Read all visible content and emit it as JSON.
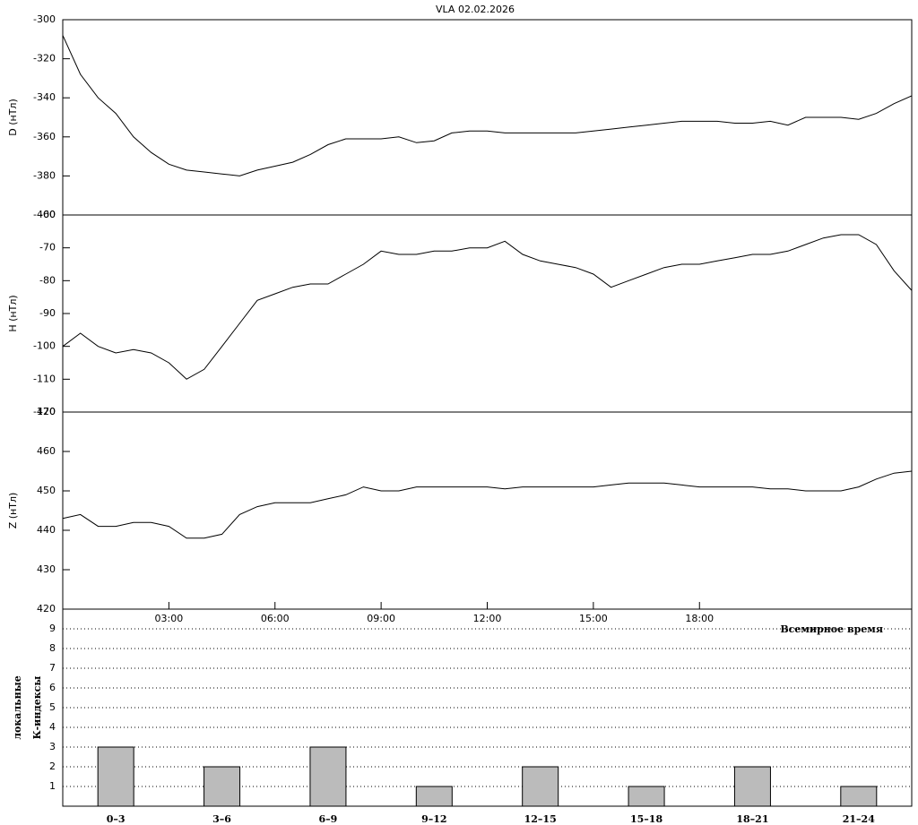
{
  "title": "VLA   02.02.2026",
  "chart_data": [
    {
      "type": "line",
      "y_label": "D (нТл)",
      "color": "#000000",
      "x": [
        0,
        0.5,
        1,
        1.5,
        2,
        2.5,
        3,
        3.5,
        4,
        4.5,
        5,
        5.5,
        6,
        6.5,
        7,
        7.5,
        8,
        8.5,
        9,
        9.5,
        10,
        10.5,
        11,
        11.5,
        12,
        12.5,
        13,
        13.5,
        14,
        14.5,
        15,
        15.5,
        16,
        16.5,
        17,
        17.5,
        18,
        18.5,
        19,
        19.5,
        20,
        20.5,
        21,
        21.5,
        22,
        22.5,
        23,
        23.5,
        24
      ],
      "values": [
        -308,
        -328,
        -340,
        -348,
        -360,
        -368,
        -374,
        -377,
        -378,
        -379,
        -380,
        -377,
        -375,
        -373,
        -369,
        -364,
        -361,
        -361,
        -361,
        -360,
        -363,
        -362,
        -358,
        -357,
        -357,
        -358,
        -358,
        -358,
        -358,
        -358,
        -357,
        -356,
        -355,
        -354,
        -353,
        -352,
        -352,
        -352,
        -353,
        -353,
        -352,
        -354,
        -350,
        -350,
        -350,
        -351,
        -348,
        -343,
        -339
      ],
      "xlim": [
        0,
        24
      ],
      "ylim": [
        -400,
        -300
      ],
      "yticks": [
        -400,
        -380,
        -360,
        -340,
        -320,
        -300
      ]
    },
    {
      "type": "line",
      "y_label": "H (нТл)",
      "color": "#000000",
      "x": [
        0,
        0.5,
        1,
        1.5,
        2,
        2.5,
        3,
        3.5,
        4,
        4.5,
        5,
        5.5,
        6,
        6.5,
        7,
        7.5,
        8,
        8.5,
        9,
        9.5,
        10,
        10.5,
        11,
        11.5,
        12,
        12.5,
        13,
        13.5,
        14,
        14.5,
        15,
        15.5,
        16,
        16.5,
        17,
        17.5,
        18,
        18.5,
        19,
        19.5,
        20,
        20.5,
        21,
        21.5,
        22,
        22.5,
        23,
        23.5,
        24
      ],
      "values": [
        -100,
        -96,
        -100,
        -102,
        -101,
        -102,
        -105,
        -110,
        -107,
        -100,
        -93,
        -86,
        -84,
        -82,
        -81,
        -81,
        -78,
        -75,
        -71,
        -72,
        -72,
        -71,
        -71,
        -70,
        -70,
        -68,
        -72,
        -74,
        -75,
        -76,
        -78,
        -82,
        -80,
        -78,
        -76,
        -75,
        -75,
        -74,
        -73,
        -72,
        -72,
        -71,
        -69,
        -67,
        -66,
        -66,
        -69,
        -77,
        -83
      ],
      "xlim": [
        0,
        24
      ],
      "ylim": [
        -120,
        -60
      ],
      "yticks": [
        -120,
        -110,
        -100,
        -90,
        -80,
        -70,
        -60
      ]
    },
    {
      "type": "line",
      "y_label": "Z (нТл)",
      "x_label": "Всемирное время",
      "color": "#000000",
      "x": [
        0,
        0.5,
        1,
        1.5,
        2,
        2.5,
        3,
        3.5,
        4,
        4.5,
        5,
        5.5,
        6,
        6.5,
        7,
        7.5,
        8,
        8.5,
        9,
        9.5,
        10,
        10.5,
        11,
        11.5,
        12,
        12.5,
        13,
        13.5,
        14,
        14.5,
        15,
        15.5,
        16,
        16.5,
        17,
        17.5,
        18,
        18.5,
        19,
        19.5,
        20,
        20.5,
        21,
        21.5,
        22,
        22.5,
        23,
        23.5,
        24
      ],
      "values": [
        443,
        444,
        441,
        441,
        442,
        442,
        441,
        438,
        438,
        439,
        444,
        446,
        447,
        447,
        447,
        448,
        449,
        451,
        450,
        450,
        451,
        451,
        451,
        451,
        451,
        450.5,
        451,
        451,
        451,
        451,
        451,
        451.5,
        452,
        452,
        452,
        451.5,
        451,
        451,
        451,
        451,
        450.5,
        450.5,
        450,
        450,
        450,
        451,
        453,
        454.5,
        455
      ],
      "xlim": [
        0,
        24
      ],
      "ylim": [
        420,
        470
      ],
      "yticks": [
        420,
        430,
        440,
        450,
        460,
        470
      ],
      "xticks": [
        {
          "value": 3,
          "label": "03:00"
        },
        {
          "value": 6,
          "label": "06:00"
        },
        {
          "value": 9,
          "label": "09:00"
        },
        {
          "value": 12,
          "label": "12:00"
        },
        {
          "value": 15,
          "label": "15:00"
        },
        {
          "value": 18,
          "label": "18:00"
        }
      ]
    },
    {
      "type": "bar",
      "y_label": [
        "локальные",
        "К-индексы"
      ],
      "color": "#bbbbbb",
      "categories": [
        "0–3",
        "3–6",
        "6–9",
        "9–12",
        "12–15",
        "15–18",
        "18–21",
        "21–24"
      ],
      "values": [
        3,
        2,
        3,
        1,
        2,
        1,
        2,
        1
      ],
      "ylim": [
        0,
        10
      ],
      "yticks": [
        1,
        2,
        3,
        4,
        5,
        6,
        7,
        8,
        9
      ],
      "grid": true
    }
  ]
}
